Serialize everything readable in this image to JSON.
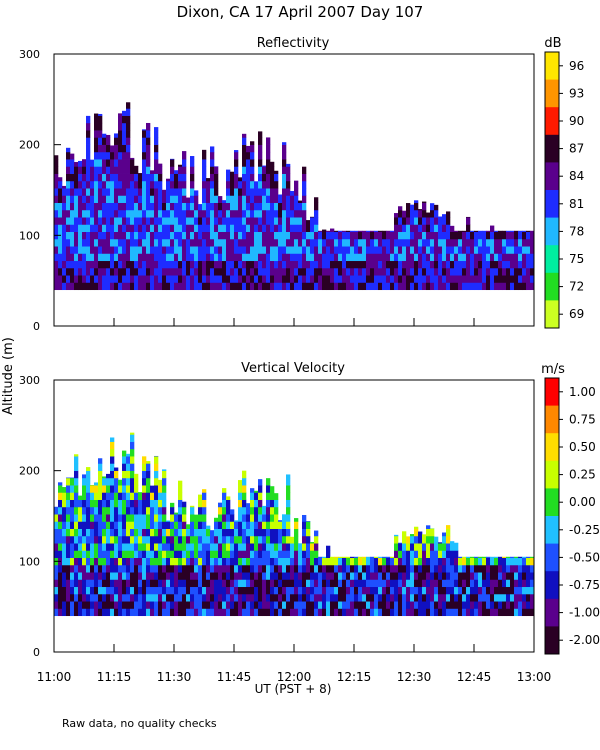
{
  "title": "Dixon, CA 17 April 2007  Day 107",
  "footnote": "Raw data, no quality checks",
  "shared_ylabel": "Altitude (m)",
  "shared_xlabel": "UT  (PST + 8)",
  "chart_data": [
    {
      "type": "heatmap",
      "title": "Reflectivity",
      "xlabel": "UT  (PST + 8)",
      "ylabel": "Altitude (m)",
      "xlim": [
        "11:00",
        "13:00"
      ],
      "ylim": [
        0,
        300
      ],
      "xticks": [
        "11:00",
        "11:15",
        "11:30",
        "11:45",
        "12:00",
        "12:15",
        "12:30",
        "12:45",
        "13:00"
      ],
      "yticks": [
        0,
        100,
        200,
        300
      ],
      "data_bottom": 40,
      "colorbar": {
        "units": "dB",
        "ticks": [
          "96",
          "93",
          "90",
          "87",
          "84",
          "81",
          "78",
          "75",
          "72",
          "69"
        ],
        "colors": [
          "#ffe600",
          "#ff9500",
          "#ff1a00",
          "#2a0024",
          "#5a008c",
          "#1e2cff",
          "#20b8ff",
          "#00eea0",
          "#22dd22",
          "#ccff22"
        ]
      }
    },
    {
      "type": "heatmap",
      "title": "Vertical Velocity",
      "xlabel": "UT  (PST + 8)",
      "ylabel": "Altitude (m)",
      "xlim": [
        "11:00",
        "13:00"
      ],
      "ylim": [
        0,
        300
      ],
      "xticks": [
        "11:00",
        "11:15",
        "11:30",
        "11:45",
        "12:00",
        "12:15",
        "12:30",
        "12:45",
        "13:00"
      ],
      "yticks": [
        0,
        100,
        200,
        300
      ],
      "data_bottom": 40,
      "colorbar": {
        "units": "m/s",
        "ticks": [
          "1.00",
          "0.75",
          "0.50",
          "0.25",
          "0.00",
          "-0.25",
          "-0.50",
          "-0.75",
          "-1.00",
          "-2.00"
        ],
        "colors": [
          "#ff0000",
          "#ff8800",
          "#ffdd00",
          "#c8ff00",
          "#22dd22",
          "#20c0ff",
          "#1e50ff",
          "#1010c0",
          "#5a008c",
          "#2a0024"
        ]
      }
    }
  ]
}
